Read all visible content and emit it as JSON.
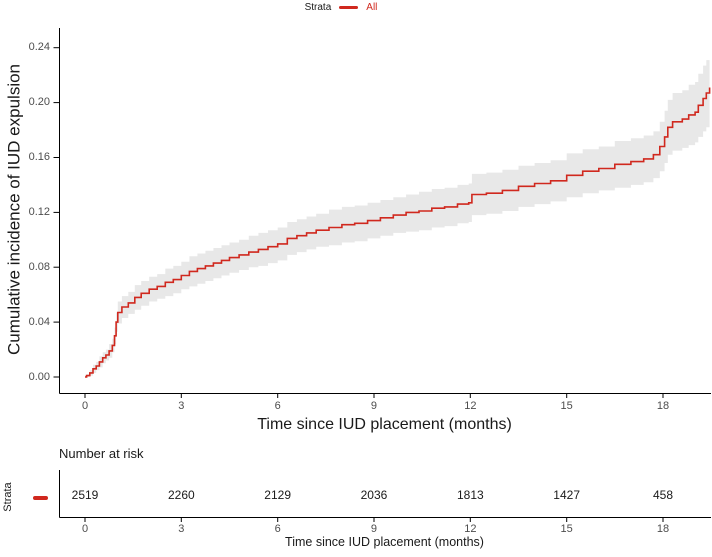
{
  "figure": {
    "legend": {
      "title": "Strata",
      "items": [
        {
          "label": "All"
        }
      ]
    }
  },
  "chart_data": {
    "type": "line",
    "subtype": "kaplan-meier-step-curve-with-confidence-band",
    "title": "",
    "xlabel": "Time since IUD placement (months)",
    "ylabel": "Cumulative incidence of IUD expulsion",
    "xlim": [
      -0.9,
      19.5
    ],
    "ylim": [
      0,
      0.25
    ],
    "xticks": [
      0,
      3,
      6,
      9,
      12,
      15,
      18
    ],
    "ytick_labels": [
      "0.00",
      "0.04",
      "0.08",
      "0.12",
      "0.16",
      "0.20",
      "0.24"
    ],
    "grid": false,
    "legend_position": "top-center",
    "series": [
      {
        "name": "All",
        "color": "#d0281e",
        "ci_fill": "#e8e8e8",
        "points_format": [
          "time_months",
          "estimate",
          "ci_lower",
          "ci_upper"
        ],
        "points": [
          [
            0.0,
            0.0,
            0.0,
            0.001
          ],
          [
            0.05,
            0.001,
            0.0,
            0.002
          ],
          [
            0.15,
            0.003,
            0.001,
            0.005
          ],
          [
            0.25,
            0.006,
            0.003,
            0.009
          ],
          [
            0.35,
            0.008,
            0.005,
            0.011
          ],
          [
            0.45,
            0.011,
            0.007,
            0.015
          ],
          [
            0.55,
            0.014,
            0.01,
            0.018
          ],
          [
            0.65,
            0.016,
            0.012,
            0.02
          ],
          [
            0.75,
            0.019,
            0.014,
            0.024
          ],
          [
            0.85,
            0.023,
            0.018,
            0.028
          ],
          [
            0.92,
            0.03,
            0.024,
            0.036
          ],
          [
            0.97,
            0.04,
            0.033,
            0.047
          ],
          [
            1.02,
            0.047,
            0.039,
            0.055
          ],
          [
            1.15,
            0.051,
            0.043,
            0.059
          ],
          [
            1.35,
            0.054,
            0.046,
            0.062
          ],
          [
            1.55,
            0.058,
            0.049,
            0.067
          ],
          [
            1.75,
            0.061,
            0.052,
            0.07
          ],
          [
            2.0,
            0.064,
            0.055,
            0.073
          ],
          [
            2.25,
            0.066,
            0.057,
            0.075
          ],
          [
            2.5,
            0.069,
            0.059,
            0.079
          ],
          [
            2.75,
            0.071,
            0.061,
            0.081
          ],
          [
            3.0,
            0.074,
            0.064,
            0.084
          ],
          [
            3.25,
            0.077,
            0.066,
            0.088
          ],
          [
            3.5,
            0.079,
            0.068,
            0.09
          ],
          [
            3.75,
            0.081,
            0.07,
            0.092
          ],
          [
            4.0,
            0.083,
            0.072,
            0.094
          ],
          [
            4.25,
            0.085,
            0.074,
            0.096
          ],
          [
            4.5,
            0.087,
            0.076,
            0.098
          ],
          [
            4.8,
            0.089,
            0.078,
            0.1
          ],
          [
            5.1,
            0.091,
            0.08,
            0.103
          ],
          [
            5.4,
            0.093,
            0.081,
            0.105
          ],
          [
            5.7,
            0.095,
            0.083,
            0.107
          ],
          [
            6.0,
            0.097,
            0.085,
            0.109
          ],
          [
            6.3,
            0.101,
            0.089,
            0.113
          ],
          [
            6.6,
            0.103,
            0.091,
            0.115
          ],
          [
            6.9,
            0.105,
            0.093,
            0.117
          ],
          [
            7.2,
            0.107,
            0.095,
            0.119
          ],
          [
            7.6,
            0.109,
            0.096,
            0.122
          ],
          [
            8.0,
            0.111,
            0.098,
            0.124
          ],
          [
            8.4,
            0.112,
            0.099,
            0.125
          ],
          [
            8.8,
            0.114,
            0.101,
            0.127
          ],
          [
            9.2,
            0.116,
            0.103,
            0.129
          ],
          [
            9.6,
            0.118,
            0.105,
            0.131
          ],
          [
            10.0,
            0.12,
            0.106,
            0.133
          ],
          [
            10.4,
            0.121,
            0.107,
            0.135
          ],
          [
            10.8,
            0.123,
            0.109,
            0.137
          ],
          [
            11.2,
            0.124,
            0.11,
            0.138
          ],
          [
            11.6,
            0.126,
            0.112,
            0.14
          ],
          [
            11.95,
            0.127,
            0.113,
            0.141
          ],
          [
            12.05,
            0.133,
            0.118,
            0.148
          ],
          [
            12.5,
            0.134,
            0.119,
            0.149
          ],
          [
            13.0,
            0.136,
            0.121,
            0.151
          ],
          [
            13.5,
            0.139,
            0.124,
            0.154
          ],
          [
            14.0,
            0.141,
            0.126,
            0.156
          ],
          [
            14.5,
            0.143,
            0.128,
            0.158
          ],
          [
            15.0,
            0.147,
            0.131,
            0.163
          ],
          [
            15.5,
            0.15,
            0.134,
            0.166
          ],
          [
            16.0,
            0.152,
            0.136,
            0.168
          ],
          [
            16.5,
            0.155,
            0.138,
            0.172
          ],
          [
            17.0,
            0.157,
            0.14,
            0.174
          ],
          [
            17.4,
            0.159,
            0.142,
            0.176
          ],
          [
            17.7,
            0.162,
            0.145,
            0.179
          ],
          [
            17.9,
            0.168,
            0.15,
            0.186
          ],
          [
            18.05,
            0.175,
            0.156,
            0.194
          ],
          [
            18.15,
            0.182,
            0.162,
            0.202
          ],
          [
            18.3,
            0.186,
            0.165,
            0.207
          ],
          [
            18.6,
            0.188,
            0.167,
            0.209
          ],
          [
            18.8,
            0.191,
            0.169,
            0.213
          ],
          [
            19.0,
            0.193,
            0.171,
            0.215
          ],
          [
            19.1,
            0.198,
            0.175,
            0.221
          ],
          [
            19.25,
            0.203,
            0.179,
            0.227
          ],
          [
            19.35,
            0.207,
            0.182,
            0.231
          ],
          [
            19.45,
            0.211,
            0.185,
            0.235
          ]
        ]
      }
    ]
  },
  "risk_table": {
    "title": "Number at risk",
    "strata_axis_label": "Strata",
    "xlabel": "Time since IUD placement (months)",
    "times": [
      0,
      3,
      6,
      9,
      12,
      15,
      18
    ],
    "rows": [
      {
        "name": "All",
        "color": "#d0281e",
        "values": [
          2519,
          2260,
          2129,
          2036,
          1813,
          1427,
          458
        ]
      }
    ]
  },
  "colors": {
    "curve": "#d0281e",
    "ci_band": "#e8e8e8",
    "axis": "#000000",
    "tick_label": "#4d4d4d",
    "text": "#1a1a1a",
    "background": "#ffffff"
  }
}
